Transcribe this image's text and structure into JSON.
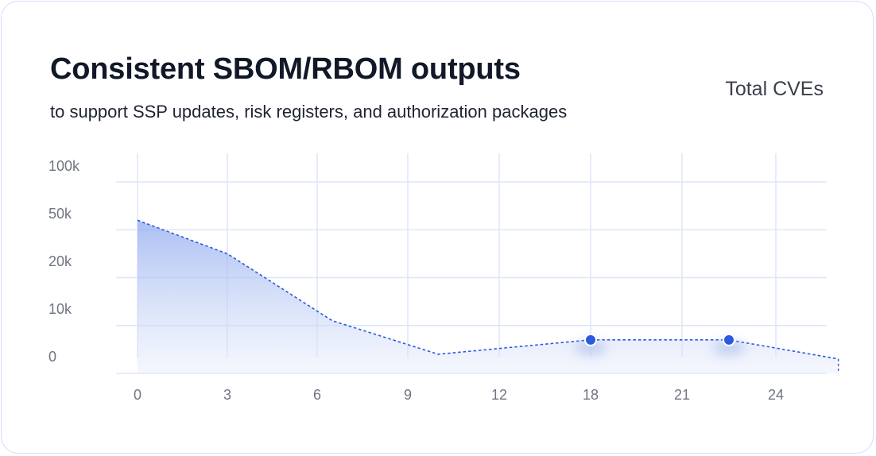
{
  "header": {
    "title": "Consistent SBOM/RBOM outputs",
    "subtitle": "to support SSP updates, risk registers, and authorization packages"
  },
  "chart_data": {
    "type": "area",
    "series": [
      {
        "name": "Total CVEs",
        "color": "#2b59e0",
        "line_style": "dashed",
        "points": [
          {
            "x": 0,
            "y": 60000
          },
          {
            "x": 3,
            "y": 35000
          },
          {
            "x": 6.5,
            "y": 11000
          },
          {
            "x": 10,
            "y": 4000
          },
          {
            "x": 18,
            "y": 7000,
            "marker": true
          },
          {
            "x": 22.5,
            "y": 7000,
            "marker": true
          },
          {
            "x": 26,
            "y": 3000
          }
        ]
      }
    ],
    "x_ticks": [
      "0",
      "3",
      "6",
      "9",
      "12",
      "18",
      "21",
      "24"
    ],
    "y_ticks": [
      "100k",
      "50k",
      "20k",
      "10k",
      "0"
    ],
    "grid": true,
    "legend": "top-right"
  }
}
